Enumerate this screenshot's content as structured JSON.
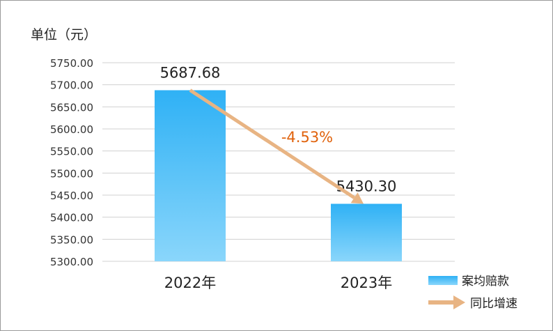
{
  "chart_data": {
    "type": "bar",
    "unit_label": "单位（元）",
    "categories": [
      "2022年",
      "2023年"
    ],
    "series": [
      {
        "name": "案均赔款",
        "values": [
          5687.68,
          5430.3
        ]
      }
    ],
    "value_labels": [
      "5687.68",
      "5430.30"
    ],
    "growth": {
      "name": "同比增速",
      "label": "-4.53%",
      "value": -4.53
    },
    "ylim": [
      5300,
      5750
    ],
    "ytick_step": 50,
    "yticks": [
      "5300.00",
      "5350.00",
      "5400.00",
      "5450.00",
      "5500.00",
      "5550.00",
      "5600.00",
      "5650.00",
      "5700.00",
      "5750.00"
    ],
    "grid": true,
    "legend_position": "bottom-right",
    "colors": {
      "bar_top": "#2fb1f5",
      "bar_bottom": "#8ad6fb",
      "arrow": "#e8b483",
      "growth_text": "#e0620c",
      "grid": "#d0d0d0",
      "text": "#222222"
    }
  }
}
